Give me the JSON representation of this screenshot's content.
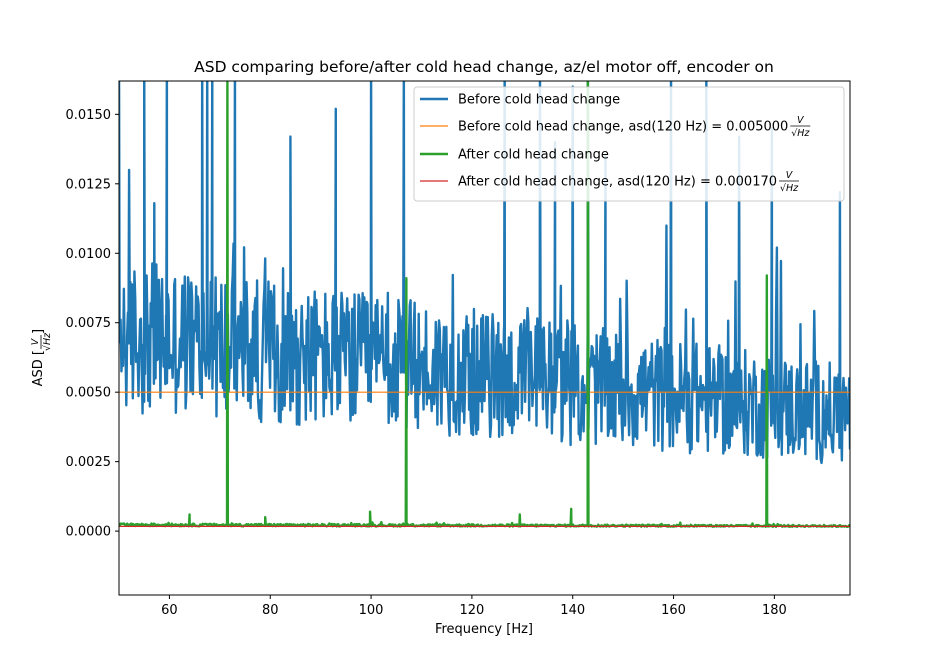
{
  "chart_data": {
    "type": "line",
    "title": "ASD comparing before/after cold head change, az/el motor off, encoder on",
    "xlabel": "Frequency [Hz]",
    "ylabel": "ASD [",
    "ylabel_unit": {
      "numerator": "V",
      "denominator": "√Hz"
    },
    "xlim": [
      50,
      195
    ],
    "ylim": [
      -0.0023,
      0.0162
    ],
    "x_ticks": [
      60,
      80,
      100,
      120,
      140,
      160,
      180
    ],
    "x_tick_labels": [
      "60",
      "80",
      "100",
      "120",
      "140",
      "160",
      "180"
    ],
    "y_ticks": [
      0.0,
      0.0025,
      0.005,
      0.0075,
      0.01,
      0.0125,
      0.015
    ],
    "y_tick_labels": [
      "0.0000",
      "0.0025",
      "0.0050",
      "0.0075",
      "0.0100",
      "0.0125",
      "0.0150"
    ],
    "grid": false,
    "legend_position": "upper right",
    "series": [
      {
        "name": "Before cold head change",
        "color": "#1f77b4",
        "style": "noisy",
        "baseline_start": 0.0068,
        "baseline_end": 0.004,
        "noise_amplitude": 0.0028,
        "spikes": [
          {
            "x": 50.0,
            "y": 0.0175
          },
          {
            "x": 52.0,
            "y": 0.013
          },
          {
            "x": 55.0,
            "y": 0.017
          },
          {
            "x": 57.0,
            "y": 0.0118
          },
          {
            "x": 59.5,
            "y": 0.017
          },
          {
            "x": 66.5,
            "y": 0.017
          },
          {
            "x": 67.5,
            "y": 0.017
          },
          {
            "x": 68.5,
            "y": 0.017
          },
          {
            "x": 73.0,
            "y": 0.017
          },
          {
            "x": 84.0,
            "y": 0.0142
          },
          {
            "x": 93.0,
            "y": 0.0152
          },
          {
            "x": 100.0,
            "y": 0.017
          },
          {
            "x": 106.5,
            "y": 0.017
          },
          {
            "x": 126.5,
            "y": 0.017
          },
          {
            "x": 133.5,
            "y": 0.017
          },
          {
            "x": 136.5,
            "y": 0.014
          },
          {
            "x": 140.0,
            "y": 0.016
          },
          {
            "x": 143.0,
            "y": 0.017
          },
          {
            "x": 146.5,
            "y": 0.0135
          },
          {
            "x": 159.5,
            "y": 0.017
          },
          {
            "x": 166.5,
            "y": 0.017
          },
          {
            "x": 173.0,
            "y": 0.0142
          },
          {
            "x": 179.5,
            "y": 0.0145
          },
          {
            "x": 193.0,
            "y": 0.0122
          }
        ]
      },
      {
        "name": "Before cold head change, asd(120 Hz) = 0.005000",
        "color": "#ff7f0e",
        "style": "hline",
        "value": 0.005
      },
      {
        "name": "After cold head change",
        "color": "#2ca02c",
        "style": "noisy",
        "baseline_start": 0.00022,
        "baseline_end": 0.00018,
        "noise_amplitude": 5e-05,
        "spikes": [
          {
            "x": 64.0,
            "y": 0.0006
          },
          {
            "x": 71.5,
            "y": 0.017
          },
          {
            "x": 79.0,
            "y": 0.0005
          },
          {
            "x": 99.8,
            "y": 0.0007
          },
          {
            "x": 107.0,
            "y": 0.0091
          },
          {
            "x": 129.5,
            "y": 0.0006
          },
          {
            "x": 139.7,
            "y": 0.0008
          },
          {
            "x": 143.0,
            "y": 0.017
          },
          {
            "x": 178.5,
            "y": 0.0092
          }
        ]
      },
      {
        "name": "After cold head change, asd(120 Hz) = 0.000170",
        "color": "#d62728",
        "style": "hline",
        "value": 0.00017
      }
    ],
    "legend": [
      {
        "text": "Before cold head change",
        "unit": false,
        "color": "#1f77b4",
        "thick": true
      },
      {
        "text": "Before cold head change, asd(120 Hz) = 0.005000",
        "unit": true,
        "color": "#ff7f0e",
        "thick": false
      },
      {
        "text": "After cold head change",
        "unit": false,
        "color": "#2ca02c",
        "thick": true
      },
      {
        "text": "After cold head change, asd(120 Hz) = 0.000170",
        "unit": true,
        "color": "#d62728",
        "thick": false
      }
    ]
  }
}
